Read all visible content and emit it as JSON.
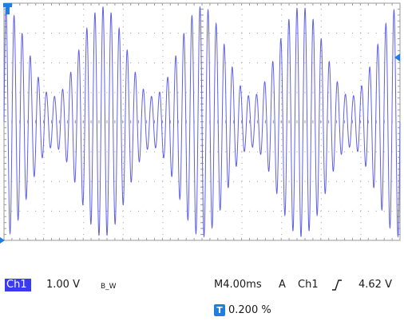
{
  "scope": {
    "colors": {
      "waveform": "#6060e8",
      "grid": "#9a9a9a",
      "marker": "#1f7fe0",
      "background": "#ffffff"
    },
    "trace": {
      "carrier_cycles": 49,
      "envelope_periods": 4,
      "amplitude_fraction": 0.97,
      "modulation_min_fraction": 0.22
    },
    "channel_label": "Ch1",
    "volts_per_div": "1.00 V",
    "bandwidth_mark": "B_W",
    "timebase": "M4.00ms",
    "trigger_mode": "A",
    "trigger_source": "Ch1",
    "trigger_slope_icon": "rising-edge-icon",
    "trigger_level": "4.62 V",
    "trigger_position_icon": "T",
    "trigger_position": "0.200 %"
  }
}
